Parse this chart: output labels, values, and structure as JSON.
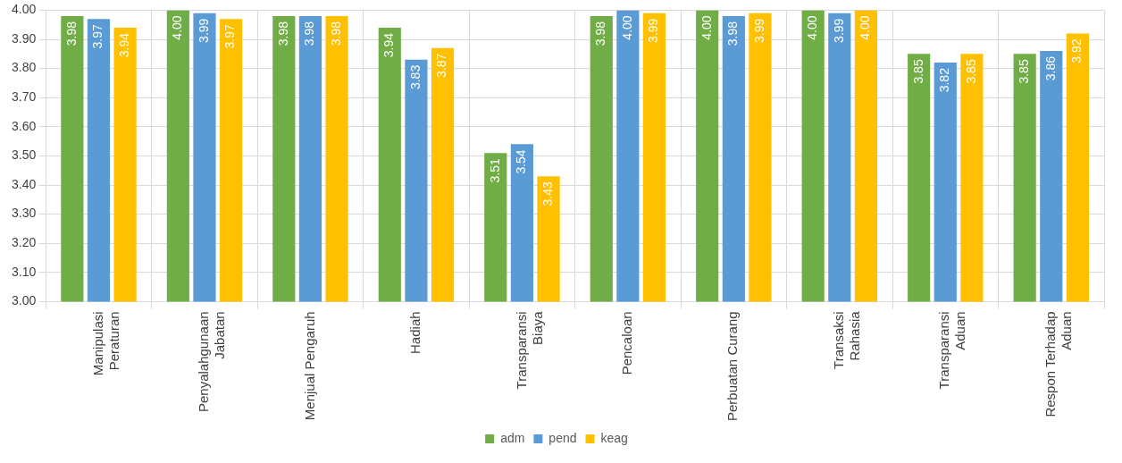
{
  "chart_data": {
    "type": "bar",
    "categories": [
      "Manipulasi Peraturan",
      "Penyalahgunaan Jabatan",
      "Menjual Pengaruh",
      "Hadiah",
      "Transparansi Biaya",
      "Pencaloan",
      "Perbuatan Curang",
      "Transaksi Rahasia",
      "Transparansi Aduan",
      "Respon Terhadap Aduan"
    ],
    "series": [
      {
        "name": "adm",
        "color": "#70ad47",
        "values": [
          3.98,
          4.0,
          3.98,
          3.94,
          3.51,
          3.98,
          4.0,
          4.0,
          3.85,
          3.85
        ],
        "value_labels": [
          "3.98",
          "4.00",
          "3.98",
          "3.94",
          "3.51",
          "3.98",
          "4.00",
          "4.00",
          "3.85",
          "3.85"
        ]
      },
      {
        "name": "pend",
        "color": "#5b9bd5",
        "values": [
          3.97,
          3.99,
          3.98,
          3.83,
          3.54,
          4.0,
          3.98,
          3.99,
          3.82,
          3.86
        ],
        "value_labels": [
          "3.97",
          "3.99",
          "3.98",
          "3.83",
          "3.54",
          "4.00",
          "3.98",
          "3.99",
          "3.82",
          "3.86"
        ]
      },
      {
        "name": "keag",
        "color": "#ffc000",
        "values": [
          3.94,
          3.97,
          3.98,
          3.87,
          3.43,
          3.99,
          3.99,
          4.0,
          3.85,
          3.92
        ],
        "value_labels": [
          "3.94",
          "3.97",
          "3.98",
          "3.87",
          "3.43",
          "3.99",
          "3.99",
          "4.00",
          "3.85",
          "3.92"
        ]
      }
    ],
    "ylim": [
      3.0,
      4.0
    ],
    "yticks": [
      {
        "value": 3.0,
        "label": "3.00"
      },
      {
        "value": 3.1,
        "label": "3.10"
      },
      {
        "value": 3.2,
        "label": "3.20"
      },
      {
        "value": 3.3,
        "label": "3.30"
      },
      {
        "value": 3.4,
        "label": "3.40"
      },
      {
        "value": 3.5,
        "label": "3.50"
      },
      {
        "value": 3.6,
        "label": "3.60"
      },
      {
        "value": 3.7,
        "label": "3.70"
      },
      {
        "value": 3.8,
        "label": "3.80"
      },
      {
        "value": 3.9,
        "label": "3.90"
      },
      {
        "value": 4.0,
        "label": "4.00"
      }
    ],
    "grid": true,
    "legend": "bottom"
  }
}
